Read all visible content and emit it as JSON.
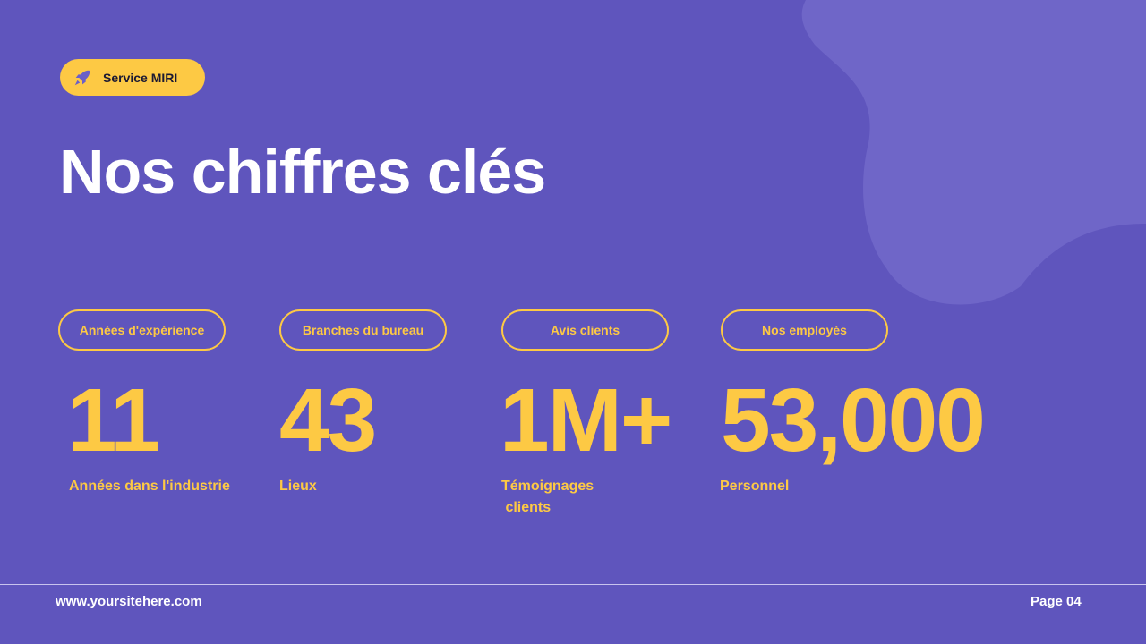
{
  "badge": {
    "icon": "rocket-icon",
    "label": "Service MIRI"
  },
  "title": "Nos chiffres clés",
  "colors": {
    "background": "#5f55bd",
    "accent": "#fdc944",
    "blob": "#6f66c8"
  },
  "stats": [
    {
      "pill": "Années d'expérience",
      "value": "11",
      "label": "Années dans l'industrie"
    },
    {
      "pill": "Branches du bureau",
      "value": "43",
      "label": "Lieux"
    },
    {
      "pill": "Avis clients",
      "value": "1M+",
      "label": "Témoignages\n clients"
    },
    {
      "pill": "Nos employés",
      "value": "53,000",
      "label": "Personnel"
    }
  ],
  "footer": {
    "site": "www.yoursitehere.com",
    "page": "Page 04"
  }
}
